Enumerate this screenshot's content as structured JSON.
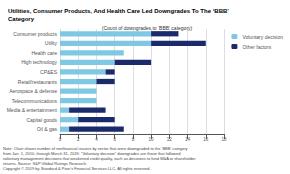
{
  "chart_data": {
    "type": "bar",
    "orientation": "horizontal",
    "stacked": true,
    "title": "Utilities, Consumer Products, And Health Care Led Downgrades To The ‘BBB’\nCategory",
    "xlabel": "(Count of downgrades to ‘BBB’ category)",
    "categories": [
      "Oil & gas",
      "Capital goods",
      "Media & entertainment",
      "Telecommunications",
      "Aerospace & defense",
      "Retail/restaurants",
      "CP&ES",
      "High technology",
      "Health care",
      "Utility",
      "Consumer products"
    ],
    "series": [
      {
        "name": "Voluntary decision",
        "color": "#7ec8e3",
        "values": [
          1,
          2,
          1,
          4,
          4,
          4,
          5,
          6,
          7,
          10,
          10
        ]
      },
      {
        "name": "Other factors",
        "color": "#1b2a6b",
        "values": [
          6,
          4,
          4,
          0,
          0,
          2,
          1,
          4,
          0,
          6,
          3
        ]
      }
    ],
    "xlim": [
      0,
      18
    ],
    "xticks": [
      0,
      2,
      4,
      6,
      8,
      10,
      12,
      14,
      16,
      18
    ],
    "grid": true,
    "legend": "right",
    "annotations": [
      "Note: Chart shows number of nonfinancial issuers by sector that were downgraded to the ‘BBB’ category",
      "from Jan. 1, 2010, through March 31, 2019. “Voluntary decision” downgrades are those that followed",
      "voluntary management decisions that weakened credit quality, such as decisions to fund M&A or shareholder",
      "returns. Source: S&P Global Ratings Research.",
      "Copyright © 2019 by Standard & Poor’s Financial Services LLC. All rights reserved."
    ]
  }
}
